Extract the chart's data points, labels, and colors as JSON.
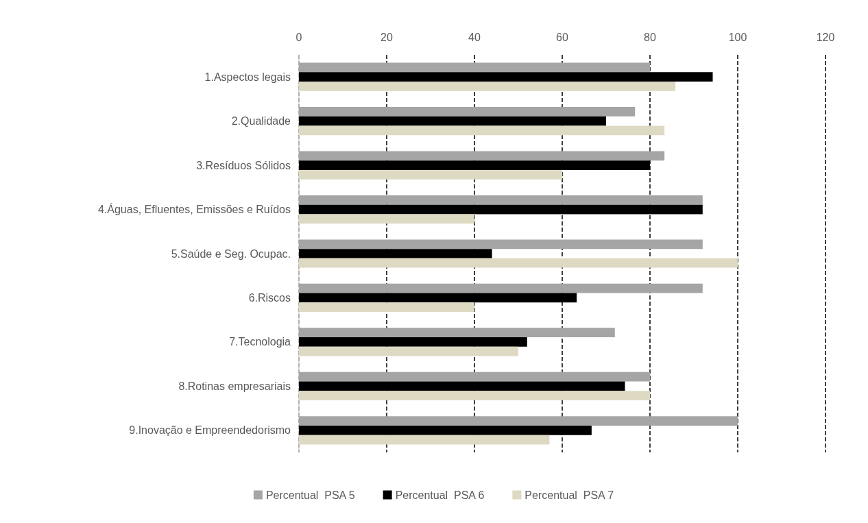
{
  "chart_data": {
    "type": "bar",
    "orientation": "horizontal",
    "categories": [
      "1.Aspectos legais",
      "2.Qualidade",
      "3.Resíduos Sólidos",
      "4.Águas, Efluentes, Emissões e Ruídos",
      "5.Saúde e Seg. Ocupac.",
      "6.Riscos",
      "7.Tecnologia",
      "8.Rotinas empresariais",
      "9.Inovação e Empreendedorismo"
    ],
    "series": [
      {
        "name": "Percentual  PSA 5",
        "color": "#a5a5a5",
        "values": [
          80,
          76.6,
          83.3,
          92,
          92,
          92,
          72,
          80,
          100
        ]
      },
      {
        "name": "Percentual  PSA 6",
        "color": "#000000",
        "values": [
          94.3,
          70,
          80,
          92,
          44,
          63.3,
          52,
          74.3,
          66.7
        ]
      },
      {
        "name": "Percentual  PSA 7",
        "color": "#ddd9c3",
        "values": [
          85.8,
          83.3,
          60,
          40,
          100,
          40,
          50,
          80,
          57.1
        ]
      }
    ],
    "xlim": [
      0,
      120
    ],
    "xticks": [
      0,
      20,
      40,
      60,
      80,
      100,
      120
    ],
    "grid": "x",
    "line_style": "dashed",
    "legend": "bottom"
  }
}
